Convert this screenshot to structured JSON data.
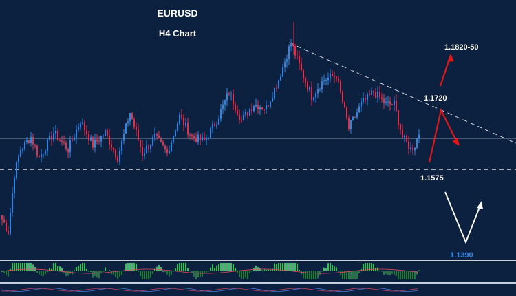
{
  "chart_data": {
    "type": "candlestick",
    "title": "EURUSD",
    "subtitle": "H4 Chart",
    "price_range": [
      1.133,
      1.192
    ],
    "levels": [
      {
        "label": "1.1820-50",
        "value": 1.1835,
        "kind": "target"
      },
      {
        "label": "1.1720",
        "value": 1.172,
        "kind": "resistance"
      },
      {
        "label": "1.1575",
        "value": 1.1575,
        "kind": "support"
      },
      {
        "label": "1.1390",
        "value": 1.139,
        "kind": "target-low"
      }
    ],
    "support_line": 1.1575,
    "current_price_line": 1.1637,
    "trendline": {
      "from_price": 1.1855,
      "to_price": 1.1608
    },
    "price_anchors": [
      {
        "i": 0,
        "p": 1.142
      },
      {
        "i": 3,
        "p": 1.139
      },
      {
        "i": 6,
        "p": 1.153
      },
      {
        "i": 9,
        "p": 1.159
      },
      {
        "i": 14,
        "p": 1.162
      },
      {
        "i": 18,
        "p": 1.157
      },
      {
        "i": 25,
        "p": 1.163
      },
      {
        "i": 32,
        "p": 1.159
      },
      {
        "i": 38,
        "p": 1.166
      },
      {
        "i": 44,
        "p": 1.16
      },
      {
        "i": 50,
        "p": 1.163
      },
      {
        "i": 56,
        "p": 1.157
      },
      {
        "i": 62,
        "p": 1.168
      },
      {
        "i": 68,
        "p": 1.158
      },
      {
        "i": 74,
        "p": 1.162
      },
      {
        "i": 80,
        "p": 1.158
      },
      {
        "i": 86,
        "p": 1.167
      },
      {
        "i": 92,
        "p": 1.162
      },
      {
        "i": 98,
        "p": 1.161
      },
      {
        "i": 104,
        "p": 1.166
      },
      {
        "i": 110,
        "p": 1.173
      },
      {
        "i": 116,
        "p": 1.166
      },
      {
        "i": 122,
        "p": 1.17
      },
      {
        "i": 128,
        "p": 1.169
      },
      {
        "i": 134,
        "p": 1.176
      },
      {
        "i": 140,
        "p": 1.185
      },
      {
        "i": 145,
        "p": 1.178
      },
      {
        "i": 150,
        "p": 1.172
      },
      {
        "i": 156,
        "p": 1.176
      },
      {
        "i": 162,
        "p": 1.177
      },
      {
        "i": 168,
        "p": 1.164
      },
      {
        "i": 174,
        "p": 1.17
      },
      {
        "i": 180,
        "p": 1.173
      },
      {
        "i": 186,
        "p": 1.17
      },
      {
        "i": 190,
        "p": 1.17
      },
      {
        "i": 194,
        "p": 1.162
      },
      {
        "i": 198,
        "p": 1.159
      },
      {
        "i": 200,
        "p": 1.16
      },
      {
        "i": 202,
        "p": 1.163
      }
    ],
    "candle_count": 203
  },
  "colors": {
    "background": "#0c2040",
    "bull_candle": "#2c86e6",
    "bear_candle": "#e0304a",
    "histogram_bull": "#34c060",
    "histogram_bear": "#1a7a3a",
    "arrow_red": "#e01818",
    "arrow_white": "#ffffff",
    "label_low": "#2a8cf0",
    "grid_line": "#aab4c4"
  }
}
